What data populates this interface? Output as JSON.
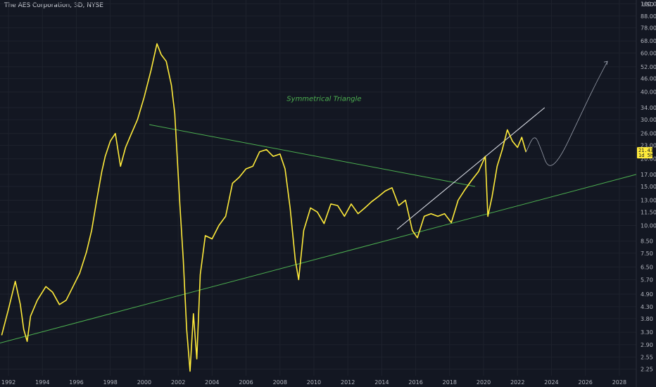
{
  "header": {
    "title": "The AES Corporation, 3D, NYSE"
  },
  "colors": {
    "background": "#131722",
    "price_line": "#ffeb3b",
    "trend_line": "#4caf50",
    "trend_line_white": "#e0e3eb",
    "projection": "#9aa0ad",
    "text": "#b2b5be"
  },
  "chart_data": {
    "type": "line",
    "y_scale": "log",
    "y_unit": "USD",
    "ylim": [
      2.1,
      104
    ],
    "xlim": [
      1991.5,
      2029.0
    ],
    "y_ticks": [
      "100.00",
      "88.00",
      "78.00",
      "68.00",
      "60.00",
      "52.00",
      "46.00",
      "40.00",
      "34.00",
      "30.00",
      "26.00",
      "23.00",
      "20.00",
      "17.00",
      "15.00",
      "13.00",
      "11.50",
      "10.00",
      "8.50",
      "7.50",
      "6.50",
      "5.70",
      "4.90",
      "4.30",
      "3.80",
      "3.30",
      "2.90",
      "2.55",
      "2.25"
    ],
    "x_ticks": [
      "1992",
      "1994",
      "1996",
      "1998",
      "2000",
      "2002",
      "2004",
      "2006",
      "2008",
      "2010",
      "2012",
      "2014",
      "2016",
      "2018",
      "2020",
      "2022",
      "2024",
      "2026",
      "2028"
    ],
    "current_price": {
      "value": 21.43,
      "label": "21.43",
      "countdown": "1d 5h"
    },
    "annotation": {
      "text": "Symmetrical Triangle",
      "x": 2010.6,
      "y": 36.5
    },
    "series": [
      {
        "points": [
          [
            1991.6,
            3.2
          ],
          [
            1992.0,
            4.2
          ],
          [
            1992.4,
            5.6
          ],
          [
            1992.7,
            4.4
          ],
          [
            1992.9,
            3.4
          ],
          [
            1993.1,
            3.0
          ],
          [
            1993.3,
            3.9
          ],
          [
            1993.7,
            4.6
          ],
          [
            1994.2,
            5.3
          ],
          [
            1994.6,
            5.0
          ],
          [
            1995.0,
            4.4
          ],
          [
            1995.4,
            4.6
          ],
          [
            1995.8,
            5.3
          ],
          [
            1996.2,
            6.1
          ],
          [
            1996.6,
            7.6
          ],
          [
            1996.9,
            9.5
          ],
          [
            1997.2,
            13.0
          ],
          [
            1997.5,
            17.5
          ],
          [
            1997.7,
            20.5
          ],
          [
            1998.0,
            24.0
          ],
          [
            1998.3,
            26.0
          ],
          [
            1998.6,
            18.5
          ],
          [
            1998.9,
            22.5
          ],
          [
            1999.2,
            25.5
          ],
          [
            1999.6,
            30.0
          ],
          [
            2000.0,
            38.0
          ],
          [
            2000.4,
            50.0
          ],
          [
            2000.75,
            66.0
          ],
          [
            2001.0,
            59.0
          ],
          [
            2001.3,
            55.0
          ],
          [
            2001.6,
            43.0
          ],
          [
            2001.8,
            32.0
          ],
          [
            2001.95,
            20.0
          ],
          [
            2002.1,
            12.5
          ],
          [
            2002.3,
            7.0
          ],
          [
            2002.5,
            3.4
          ],
          [
            2002.7,
            2.2
          ],
          [
            2002.9,
            4.0
          ],
          [
            2003.1,
            2.5
          ],
          [
            2003.3,
            6.0
          ],
          [
            2003.6,
            9.0
          ],
          [
            2004.0,
            8.7
          ],
          [
            2004.4,
            10.0
          ],
          [
            2004.8,
            11.0
          ],
          [
            2005.2,
            15.5
          ],
          [
            2005.6,
            16.5
          ],
          [
            2006.0,
            18.0
          ],
          [
            2006.4,
            18.5
          ],
          [
            2006.8,
            21.5
          ],
          [
            2007.2,
            22.0
          ],
          [
            2007.6,
            20.5
          ],
          [
            2008.0,
            21.0
          ],
          [
            2008.3,
            18.0
          ],
          [
            2008.6,
            12.0
          ],
          [
            2008.9,
            7.0
          ],
          [
            2009.1,
            5.7
          ],
          [
            2009.4,
            9.5
          ],
          [
            2009.8,
            12.0
          ],
          [
            2010.2,
            11.5
          ],
          [
            2010.6,
            10.2
          ],
          [
            2011.0,
            12.5
          ],
          [
            2011.4,
            12.3
          ],
          [
            2011.8,
            11.0
          ],
          [
            2012.2,
            12.5
          ],
          [
            2012.6,
            11.3
          ],
          [
            2013.0,
            12.0
          ],
          [
            2013.4,
            12.8
          ],
          [
            2013.8,
            13.5
          ],
          [
            2014.2,
            14.3
          ],
          [
            2014.6,
            14.8
          ],
          [
            2015.0,
            12.3
          ],
          [
            2015.4,
            13.0
          ],
          [
            2015.8,
            9.5
          ],
          [
            2016.1,
            8.8
          ],
          [
            2016.5,
            11.0
          ],
          [
            2016.9,
            11.3
          ],
          [
            2017.3,
            11.0
          ],
          [
            2017.7,
            11.3
          ],
          [
            2018.1,
            10.3
          ],
          [
            2018.5,
            13.0
          ],
          [
            2018.9,
            14.5
          ],
          [
            2019.3,
            16.0
          ],
          [
            2019.7,
            17.5
          ],
          [
            2020.1,
            20.5
          ],
          [
            2020.25,
            11.0
          ],
          [
            2020.5,
            13.5
          ],
          [
            2020.8,
            18.5
          ],
          [
            2021.1,
            22.0
          ],
          [
            2021.4,
            27.0
          ],
          [
            2021.7,
            24.0
          ],
          [
            2022.0,
            22.5
          ],
          [
            2022.25,
            25.0
          ],
          [
            2022.5,
            21.43
          ]
        ]
      }
    ],
    "trend_lines": [
      {
        "name": "Symmetrical Triangle upper",
        "from": [
          2000.3,
          28.5
        ],
        "to": [
          2019.5,
          15.0
        ]
      },
      {
        "name": "Symmetrical Triangle lower",
        "from": [
          1991.5,
          2.95
        ],
        "to": [
          2029.0,
          17.0
        ]
      },
      {
        "name": "Channel",
        "from": [
          2014.9,
          9.6
        ],
        "to": [
          2023.6,
          34.0
        ]
      }
    ],
    "projection": {
      "points": [
        [
          2022.5,
          21.43
        ],
        [
          2023.0,
          26.0
        ],
        [
          2023.4,
          22.0
        ],
        [
          2023.8,
          18.0
        ],
        [
          2024.5,
          20.0
        ],
        [
          2025.5,
          29.0
        ],
        [
          2026.5,
          42.0
        ],
        [
          2027.3,
          55.0
        ]
      ]
    }
  }
}
